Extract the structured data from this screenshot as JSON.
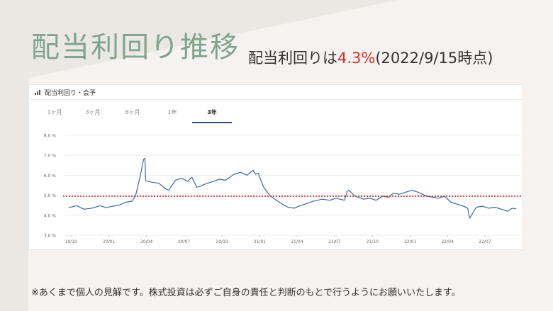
{
  "title": "配当利回り推移",
  "subtitle": {
    "prefix": "配当利回りは",
    "rate": "4.3%",
    "suffix": "(2022/9/15時点)"
  },
  "card": {
    "header_label": "配当利回り・会予",
    "tabs": [
      {
        "label": "1ヶ月",
        "active": false
      },
      {
        "label": "3ヶ月",
        "active": false
      },
      {
        "label": "6ヶ月",
        "active": false
      },
      {
        "label": "1年",
        "active": false
      },
      {
        "label": "3年",
        "active": true
      }
    ]
  },
  "footnote": "※あくまで個人の見解です。株式投資は必ずご自身の責任と判断のもとで行うようにお願いいたします。",
  "colors": {
    "title": "#7fa58c",
    "rate": "#d9342b",
    "line": "#3a66a8",
    "reference": "#d9342b",
    "active_tab": "#2e4a73"
  },
  "chart_data": {
    "type": "line",
    "ylim": [
      3.0,
      8.0
    ],
    "yticks": [
      "8.0 %",
      "7.0 %",
      "6.0 %",
      "5.0 %",
      "4.0 %",
      "3.0 %"
    ],
    "xticks": [
      "19/10",
      "20/01",
      "20/04",
      "20/07",
      "20/10",
      "21/01",
      "21/04",
      "21/07",
      "21/10",
      "22/01",
      "22/04",
      "22/07"
    ],
    "reference_line": 4.95,
    "grid": true,
    "series": [
      {
        "x": [
          "2019-09-25",
          "2019-10-15",
          "2019-11-01",
          "2019-11-20",
          "2019-12-10",
          "2019-12-25",
          "2020-01-10",
          "2020-01-25",
          "2020-02-10",
          "2020-02-25",
          "2020-03-05",
          "2020-03-15",
          "2020-03-25",
          "2020-03-28",
          "2020-03-30",
          "2020-04-15",
          "2020-05-01",
          "2020-05-15",
          "2020-05-25",
          "2020-06-10",
          "2020-06-25",
          "2020-07-10",
          "2020-07-20",
          "2020-08-01",
          "2020-08-10",
          "2020-08-20",
          "2020-09-10",
          "2020-09-25",
          "2020-10-10",
          "2020-10-20",
          "2020-10-30",
          "2020-11-15",
          "2020-12-01",
          "2020-12-15",
          "2020-12-22",
          "2020-12-28",
          "2021-01-10",
          "2021-01-25",
          "2021-02-10",
          "2021-02-25",
          "2021-03-10",
          "2021-03-25",
          "2021-04-05",
          "2021-04-20",
          "2021-05-10",
          "2021-06-01",
          "2021-06-20",
          "2021-07-05",
          "2021-07-25",
          "2021-08-01",
          "2021-08-05",
          "2021-08-20",
          "2021-09-10",
          "2021-09-25",
          "2021-10-10",
          "2021-10-25",
          "2021-11-10",
          "2021-11-20",
          "2021-12-05",
          "2021-12-20",
          "2022-01-05",
          "2022-01-20",
          "2022-02-10",
          "2022-02-25",
          "2022-03-10",
          "2022-03-25",
          "2022-04-10",
          "2022-04-25",
          "2022-05-10",
          "2022-05-20",
          "2022-05-25",
          "2022-06-10",
          "2022-06-25",
          "2022-07-10",
          "2022-07-25",
          "2022-08-10",
          "2022-08-25",
          "2022-09-05",
          "2022-09-15"
        ],
        "values": [
          4.38,
          4.48,
          4.3,
          4.35,
          4.48,
          4.38,
          4.45,
          4.5,
          4.65,
          4.7,
          4.95,
          5.8,
          6.8,
          6.85,
          5.72,
          5.65,
          5.6,
          5.35,
          5.25,
          5.75,
          5.85,
          5.7,
          5.9,
          5.4,
          5.45,
          5.55,
          5.7,
          5.8,
          5.75,
          5.9,
          6.05,
          6.15,
          6.0,
          6.25,
          6.05,
          6.1,
          5.4,
          5.0,
          4.75,
          4.55,
          4.4,
          4.35,
          4.45,
          4.55,
          4.7,
          4.8,
          4.75,
          4.85,
          4.75,
          5.2,
          5.25,
          4.95,
          4.8,
          4.85,
          4.75,
          4.95,
          4.9,
          5.1,
          5.05,
          5.15,
          5.25,
          5.15,
          4.95,
          4.9,
          4.85,
          4.95,
          4.65,
          4.55,
          4.45,
          4.35,
          3.85,
          4.4,
          4.45,
          4.35,
          4.4,
          4.3,
          4.2,
          4.35,
          4.32
        ]
      }
    ]
  }
}
